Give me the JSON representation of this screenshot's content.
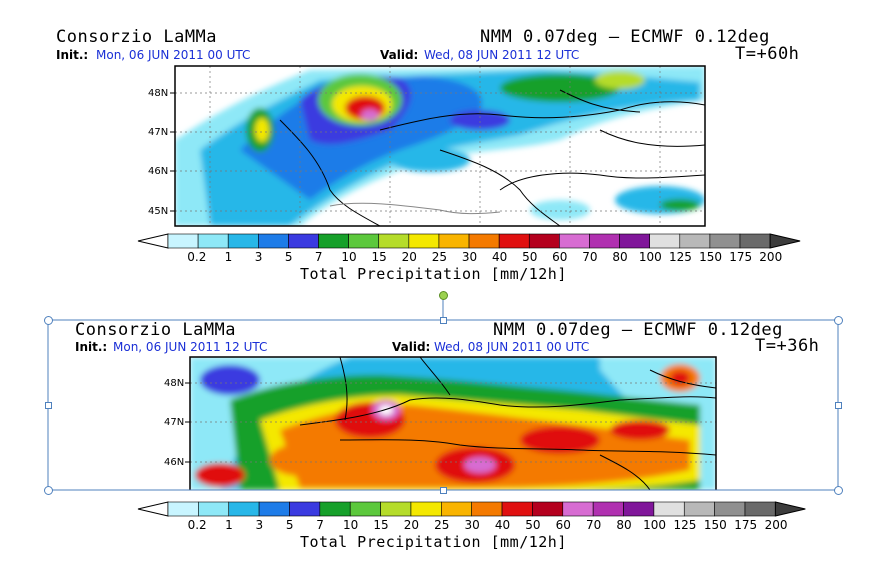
{
  "panels": [
    {
      "org": "Consorzio LaMMa",
      "model": "NMM 0.07deg — ECMWF 0.12deg",
      "init_label": "Init.:",
      "init_value": "Mon, 06 JUN 2011   00 UTC",
      "valid_label": "Valid:",
      "valid_value": "Wed, 08 JUN 2011   12 UTC",
      "lead": "T=+60h",
      "lat_ticks": [
        "48N",
        "47N",
        "46N",
        "45N"
      ]
    },
    {
      "org": "Consorzio LaMMa",
      "model": "NMM 0.07deg — ECMWF 0.12deg",
      "init_label": "Init.:",
      "init_value": "Mon, 06 JUN 2011   12 UTC",
      "valid_label": "Valid:",
      "valid_value": "Wed, 08 JUN 2011   00 UTC",
      "lead": "T=+36h",
      "lat_ticks": [
        "48N",
        "47N",
        "46N"
      ]
    }
  ],
  "colorbar": {
    "title": "Total Precipitation [mm/12h]",
    "labels": [
      "0.2",
      "1",
      "3",
      "5",
      "7",
      "10",
      "15",
      "20",
      "25",
      "30",
      "40",
      "50",
      "60",
      "70",
      "80",
      "100",
      "125",
      "150",
      "175",
      "200"
    ],
    "colors": [
      "#c8f5ff",
      "#8ee8f7",
      "#28b7e8",
      "#1e7ce8",
      "#3a3ae0",
      "#16a02a",
      "#5cc83c",
      "#b5dc2a",
      "#f4e800",
      "#f9b400",
      "#f47a00",
      "#e01010",
      "#b4001e",
      "#d76cd2",
      "#b030b0",
      "#80169a",
      "#e0e0e0",
      "#b8b8b8",
      "#909090",
      "#6a6a6a",
      "#3c3c3c"
    ],
    "under_color": "#ffffff",
    "over_color": "#3c3c3c"
  }
}
